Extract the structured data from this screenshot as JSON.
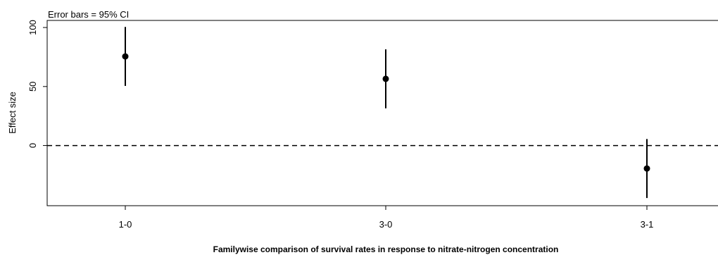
{
  "chart_data": {
    "type": "scatter",
    "title": "",
    "annotation": "Error bars = 95% CI",
    "xlabel": "Familywise comparison of survival rates in response to nitrate-nitrogen concentration",
    "ylabel": "Effect size",
    "categories": [
      "1-0",
      "3-0",
      "3-1"
    ],
    "series": [
      {
        "values": [
          75.5,
          56.5,
          -19.5
        ],
        "ci_lower": [
          50.5,
          31.5,
          -44.5
        ],
        "ci_upper": [
          100.5,
          81.5,
          5.5
        ]
      }
    ],
    "yticks": [
      0,
      50,
      100
    ],
    "ytick_labels": [
      "0",
      "50",
      "100"
    ],
    "ylim": [
      -51,
      106
    ],
    "reference_line": 0,
    "reference_line_style": "dashed",
    "grid": false,
    "colors": {
      "marker": "#000000",
      "error_bar": "#000000",
      "reference_line": "#000000",
      "axes": "#000000"
    }
  }
}
